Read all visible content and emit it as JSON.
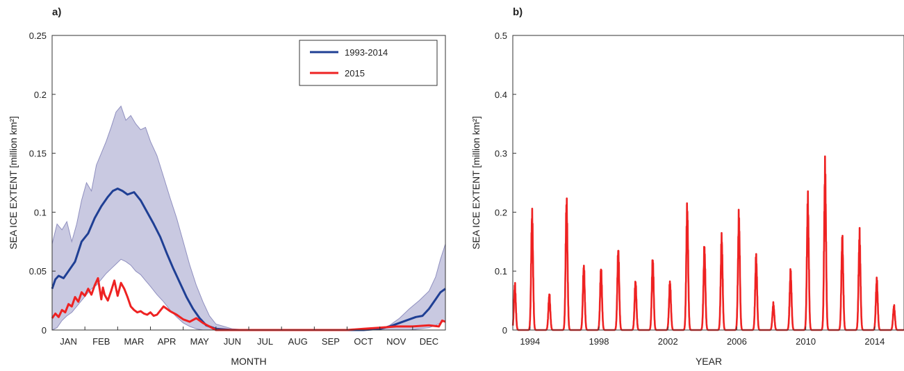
{
  "chart_data": [
    {
      "type": "line",
      "panel_label": "a)",
      "xlabel": "MONTH",
      "ylabel": "SEA ICE EXTENT [million km²]",
      "ylim": [
        0,
        0.25
      ],
      "yticks": [
        "0",
        "0.05",
        "0.1",
        "0.15",
        "0.2",
        "0.25"
      ],
      "categories": [
        "JAN",
        "FEB",
        "MAR",
        "APR",
        "MAY",
        "JUN",
        "JUL",
        "AUG",
        "SEP",
        "OCT",
        "NOV",
        "DEC"
      ],
      "grid": false,
      "legend_position": "top-right",
      "colors": {
        "mean": "#1f3f94",
        "year": "#ee2222",
        "band": "#c9c9e1",
        "band_edge": "#8f8fbf"
      },
      "series": [
        {
          "name": "1993-2014",
          "x": [
            0,
            0.1,
            0.2,
            0.35,
            0.5,
            0.7,
            0.9,
            1.1,
            1.3,
            1.5,
            1.7,
            1.85,
            2.0,
            2.15,
            2.3,
            2.5,
            2.7,
            2.9,
            3.1,
            3.3,
            3.5,
            3.7,
            3.9,
            4.1,
            4.3,
            4.5,
            4.7,
            5.0,
            5.5,
            6,
            7,
            8,
            9,
            9.5,
            10.0,
            10.3,
            10.6,
            10.9,
            11.1,
            11.3,
            11.5,
            11.7,
            11.85,
            12.0
          ],
          "y": [
            0.035,
            0.043,
            0.046,
            0.044,
            0.05,
            0.058,
            0.075,
            0.082,
            0.095,
            0.105,
            0.113,
            0.118,
            0.12,
            0.118,
            0.115,
            0.117,
            0.11,
            0.1,
            0.09,
            0.079,
            0.065,
            0.052,
            0.04,
            0.028,
            0.018,
            0.01,
            0.004,
            0.001,
            0.0,
            0.0,
            0.0,
            0.0,
            0.0,
            0.0,
            0.001,
            0.003,
            0.006,
            0.009,
            0.011,
            0.012,
            0.018,
            0.026,
            0.032,
            0.035
          ]
        },
        {
          "name": "2015",
          "x": [
            0,
            0.1,
            0.2,
            0.3,
            0.4,
            0.5,
            0.6,
            0.7,
            0.8,
            0.9,
            1.0,
            1.1,
            1.2,
            1.3,
            1.4,
            1.5,
            1.55,
            1.6,
            1.7,
            1.8,
            1.9,
            2.0,
            2.1,
            2.2,
            2.3,
            2.4,
            2.5,
            2.6,
            2.7,
            2.8,
            2.9,
            3.0,
            3.1,
            3.2,
            3.4,
            3.6,
            3.8,
            4.0,
            4.2,
            4.4,
            4.6,
            5,
            6,
            7,
            8,
            9,
            9.5,
            10,
            10.5,
            11,
            11.5,
            11.8,
            11.9,
            12.0
          ],
          "y": [
            0.01,
            0.014,
            0.011,
            0.017,
            0.015,
            0.022,
            0.02,
            0.028,
            0.024,
            0.032,
            0.029,
            0.035,
            0.03,
            0.038,
            0.044,
            0.026,
            0.036,
            0.03,
            0.025,
            0.033,
            0.042,
            0.029,
            0.04,
            0.035,
            0.028,
            0.02,
            0.017,
            0.015,
            0.016,
            0.014,
            0.013,
            0.015,
            0.012,
            0.013,
            0.02,
            0.016,
            0.013,
            0.009,
            0.007,
            0.01,
            0.006,
            0.0,
            0.0,
            0.0,
            0.0,
            0.0,
            0.001,
            0.002,
            0.003,
            0.003,
            0.004,
            0.003,
            0.008,
            0.007
          ]
        }
      ],
      "band": {
        "x": [
          0,
          0.15,
          0.3,
          0.45,
          0.6,
          0.75,
          0.9,
          1.05,
          1.2,
          1.35,
          1.5,
          1.65,
          1.8,
          1.95,
          2.1,
          2.25,
          2.4,
          2.55,
          2.7,
          2.85,
          3.0,
          3.2,
          3.4,
          3.6,
          3.8,
          4.0,
          4.2,
          4.4,
          4.6,
          4.8,
          5.0,
          5.5,
          6,
          7,
          8,
          9,
          9.5,
          10,
          10.3,
          10.6,
          10.9,
          11.2,
          11.5,
          11.7,
          11.85,
          12.0
        ],
        "upper": [
          0.073,
          0.09,
          0.085,
          0.092,
          0.075,
          0.09,
          0.11,
          0.125,
          0.118,
          0.14,
          0.15,
          0.16,
          0.172,
          0.185,
          0.19,
          0.178,
          0.182,
          0.175,
          0.17,
          0.172,
          0.16,
          0.148,
          0.13,
          0.112,
          0.095,
          0.075,
          0.055,
          0.038,
          0.024,
          0.012,
          0.005,
          0.001,
          0.0,
          0.0,
          0.0,
          0.0,
          0.0,
          0.001,
          0.004,
          0.01,
          0.018,
          0.025,
          0.033,
          0.045,
          0.06,
          0.073
        ],
        "lower": [
          0.0,
          0.002,
          0.008,
          0.012,
          0.015,
          0.02,
          0.025,
          0.03,
          0.035,
          0.038,
          0.043,
          0.048,
          0.052,
          0.056,
          0.06,
          0.058,
          0.055,
          0.05,
          0.047,
          0.042,
          0.037,
          0.03,
          0.024,
          0.017,
          0.011,
          0.006,
          0.003,
          0.001,
          0.0,
          0.0,
          0.0,
          0.0,
          0.0,
          0.0,
          0.0,
          0.0,
          0.0,
          0.0,
          0.0,
          0.0,
          0.0,
          0.001,
          0.002,
          0.004,
          0.006,
          0.008
        ]
      }
    },
    {
      "type": "line",
      "panel_label": "b)",
      "xlabel": "YEAR",
      "ylabel": "SEA ICE EXTENT [million km²]",
      "ylim": [
        0,
        0.5
      ],
      "yticks": [
        "0",
        "0.1",
        "0.2",
        "0.3",
        "0.4",
        "0.5"
      ],
      "xlim": [
        1993.0,
        2015.7
      ],
      "xticks": [
        1994,
        1998,
        2002,
        2006,
        2010,
        2014
      ],
      "grid": false,
      "colors": {
        "line": "#ee2222"
      },
      "series": [
        {
          "peaks": [
            {
              "year": 1993,
              "max": 0.083
            },
            {
              "year": 1994,
              "max": 0.215
            },
            {
              "year": 1995,
              "max": 0.065
            },
            {
              "year": 1996,
              "max": 0.238
            },
            {
              "year": 1997,
              "max": 0.117
            },
            {
              "year": 1998,
              "max": 0.113
            },
            {
              "year": 1999,
              "max": 0.147
            },
            {
              "year": 2000,
              "max": 0.089
            },
            {
              "year": 2001,
              "max": 0.13
            },
            {
              "year": 2002,
              "max": 0.088
            },
            {
              "year": 2003,
              "max": 0.227
            },
            {
              "year": 2004,
              "max": 0.151
            },
            {
              "year": 2005,
              "max": 0.171
            },
            {
              "year": 2006,
              "max": 0.21
            },
            {
              "year": 2007,
              "max": 0.135
            },
            {
              "year": 2008,
              "max": 0.048
            },
            {
              "year": 2009,
              "max": 0.108
            },
            {
              "year": 2010,
              "max": 0.24
            },
            {
              "year": 2011,
              "max": 0.3
            },
            {
              "year": 2012,
              "max": 0.168
            },
            {
              "year": 2013,
              "max": 0.176
            },
            {
              "year": 2014,
              "max": 0.093
            },
            {
              "year": 2015,
              "max": 0.044
            }
          ]
        }
      ]
    }
  ]
}
